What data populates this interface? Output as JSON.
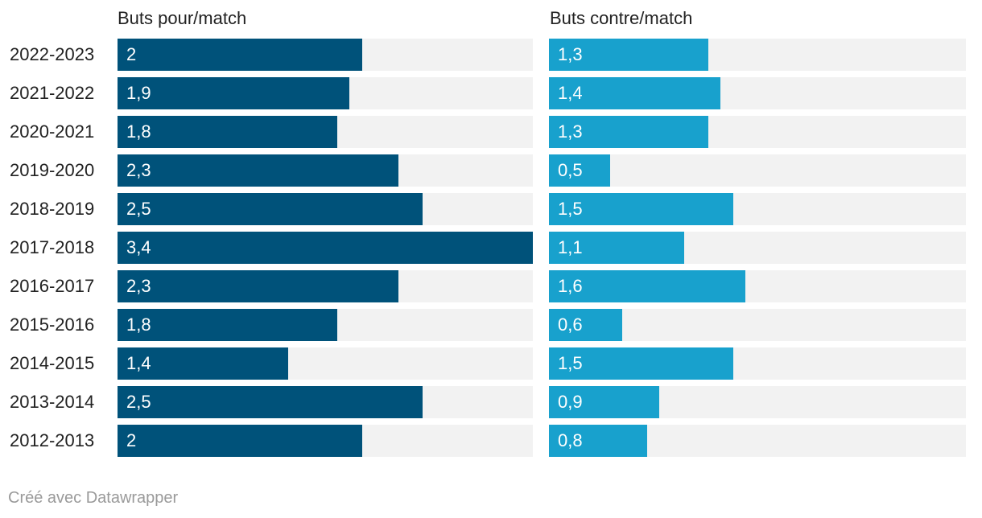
{
  "chart_data": {
    "type": "bar",
    "orientation": "horizontal",
    "layout": "split-bars",
    "categories": [
      "2022-2023",
      "2021-2022",
      "2020-2021",
      "2019-2020",
      "2018-2019",
      "2017-2018",
      "2016-2017",
      "2015-2016",
      "2014-2015",
      "2013-2014",
      "2012-2013"
    ],
    "series": [
      {
        "name": "Buts pour/match",
        "color": "#00527a",
        "values": [
          2,
          1.9,
          1.8,
          2.3,
          2.5,
          3.4,
          2.3,
          1.8,
          1.4,
          2.5,
          2
        ],
        "labels": [
          "2",
          "1,9",
          "1,8",
          "2,3",
          "2,5",
          "3,4",
          "2,3",
          "1,8",
          "1,4",
          "2,5",
          "2"
        ],
        "xlim": [
          0,
          3.4
        ]
      },
      {
        "name": "Buts contre/match",
        "color": "#18a1cd",
        "values": [
          1.3,
          1.4,
          1.3,
          0.5,
          1.5,
          1.1,
          1.6,
          0.6,
          1.5,
          0.9,
          0.8
        ],
        "labels": [
          "1,3",
          "1,4",
          "1,3",
          "0,5",
          "1,5",
          "1,1",
          "1,6",
          "0,6",
          "1,5",
          "0,9",
          "0,8"
        ],
        "xlim": [
          0,
          3.4
        ]
      }
    ],
    "track_color": "#f2f2f2",
    "grid": false,
    "legend": "none"
  },
  "footer": "Créé avec Datawrapper"
}
